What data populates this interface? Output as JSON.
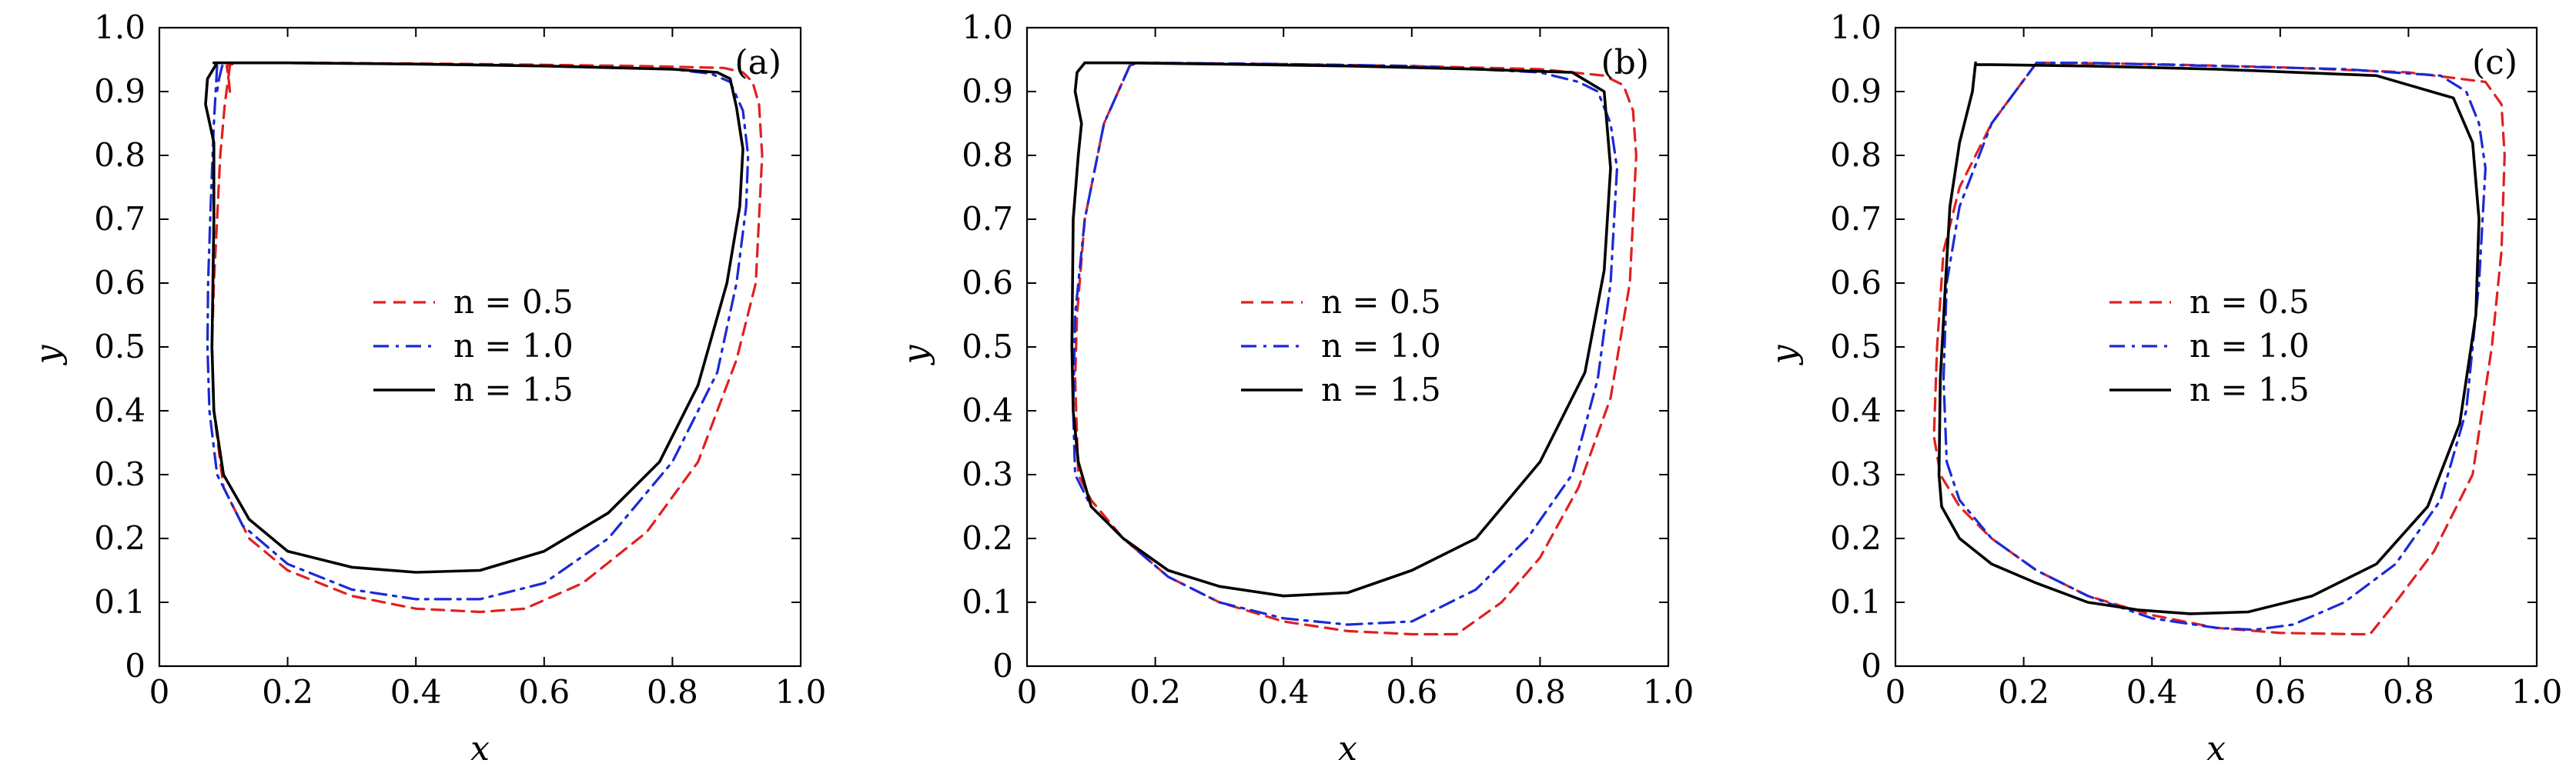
{
  "chart_data": [
    {
      "type": "line",
      "panel": "(a)",
      "xlabel": "x",
      "ylabel": "y",
      "xlim": [
        0,
        1.0
      ],
      "ylim": [
        0,
        1.0
      ],
      "xticks": [
        "0",
        "0.2",
        "0.4",
        "0.6",
        "0.8",
        "1.0"
      ],
      "yticks": [
        "0",
        "0.1",
        "0.2",
        "0.3",
        "0.4",
        "0.5",
        "0.6",
        "0.7",
        "0.8",
        "0.9",
        "1.0"
      ],
      "legend_position": "center",
      "series": [
        {
          "name": "n = 0.5",
          "color": "#e02020",
          "dash": "dashed",
          "x": [
            0.11,
            0.102,
            0.095,
            0.09,
            0.085,
            0.082,
            0.085,
            0.1,
            0.14,
            0.2,
            0.3,
            0.4,
            0.5,
            0.57,
            0.66,
            0.76,
            0.84,
            0.9,
            0.93,
            0.94,
            0.935,
            0.925,
            0.91,
            0.88,
            0.75,
            0.5,
            0.25,
            0.12,
            0.105,
            0.108,
            0.11
          ],
          "y": [
            0.94,
            0.88,
            0.8,
            0.7,
            0.6,
            0.5,
            0.4,
            0.28,
            0.2,
            0.15,
            0.11,
            0.09,
            0.085,
            0.09,
            0.13,
            0.21,
            0.32,
            0.48,
            0.6,
            0.8,
            0.88,
            0.915,
            0.93,
            0.937,
            0.94,
            0.943,
            0.945,
            0.945,
            0.94,
            0.92,
            0.9
          ]
        },
        {
          "name": "n = 1.0",
          "color": "#1a2ad6",
          "dash": "dashdot",
          "x": [
            0.09,
            0.085,
            0.08,
            0.076,
            0.075,
            0.078,
            0.09,
            0.13,
            0.2,
            0.3,
            0.4,
            0.5,
            0.6,
            0.7,
            0.8,
            0.87,
            0.9,
            0.915,
            0.918,
            0.91,
            0.89,
            0.86,
            0.8,
            0.6,
            0.4,
            0.2,
            0.105,
            0.098,
            0.093,
            0.09
          ],
          "y": [
            0.94,
            0.85,
            0.72,
            0.6,
            0.5,
            0.4,
            0.3,
            0.22,
            0.16,
            0.12,
            0.105,
            0.105,
            0.13,
            0.2,
            0.32,
            0.46,
            0.6,
            0.72,
            0.8,
            0.87,
            0.915,
            0.928,
            0.935,
            0.94,
            0.943,
            0.945,
            0.945,
            0.94,
            0.92,
            0.9
          ]
        },
        {
          "name": "n = 1.5",
          "color": "#000000",
          "dash": "solid",
          "x": [
            0.09,
            0.075,
            0.072,
            0.085,
            0.085,
            0.082,
            0.085,
            0.1,
            0.14,
            0.2,
            0.3,
            0.4,
            0.5,
            0.6,
            0.7,
            0.78,
            0.84,
            0.885,
            0.905,
            0.91,
            0.9,
            0.89,
            0.87,
            0.8,
            0.6,
            0.4,
            0.2,
            0.1,
            0.085,
            0.09
          ],
          "y": [
            0.945,
            0.92,
            0.88,
            0.82,
            0.7,
            0.5,
            0.4,
            0.3,
            0.23,
            0.18,
            0.155,
            0.147,
            0.15,
            0.18,
            0.24,
            0.32,
            0.44,
            0.6,
            0.72,
            0.81,
            0.875,
            0.92,
            0.93,
            0.935,
            0.94,
            0.943,
            0.945,
            0.945,
            0.945,
            0.945
          ]
        }
      ]
    },
    {
      "type": "line",
      "panel": "(b)",
      "xlabel": "x",
      "ylabel": "y",
      "xlim": [
        0,
        1.0
      ],
      "ylim": [
        0,
        1.0
      ],
      "xticks": [
        "0",
        "0.2",
        "0.4",
        "0.6",
        "0.8",
        "1.0"
      ],
      "yticks": [
        "0",
        "0.1",
        "0.2",
        "0.3",
        "0.4",
        "0.5",
        "0.6",
        "0.7",
        "0.8",
        "0.9",
        "1.0"
      ],
      "legend_position": "center",
      "series": [
        {
          "name": "n = 0.5",
          "color": "#e02020",
          "dash": "dashed",
          "x": [
            0.16,
            0.12,
            0.09,
            0.078,
            0.075,
            0.08,
            0.1,
            0.15,
            0.22,
            0.3,
            0.4,
            0.5,
            0.6,
            0.67,
            0.74,
            0.8,
            0.86,
            0.91,
            0.94,
            0.95,
            0.945,
            0.93,
            0.9,
            0.8,
            0.6,
            0.4,
            0.2,
            0.17,
            0.16
          ],
          "y": [
            0.94,
            0.85,
            0.7,
            0.55,
            0.45,
            0.3,
            0.26,
            0.2,
            0.14,
            0.1,
            0.07,
            0.055,
            0.05,
            0.05,
            0.1,
            0.17,
            0.28,
            0.42,
            0.6,
            0.8,
            0.87,
            0.91,
            0.925,
            0.935,
            0.94,
            0.943,
            0.945,
            0.945,
            0.94
          ]
        },
        {
          "name": "n = 1.0",
          "color": "#1a2ad6",
          "dash": "dashdot",
          "x": [
            0.16,
            0.12,
            0.09,
            0.075,
            0.072,
            0.075,
            0.1,
            0.15,
            0.22,
            0.3,
            0.4,
            0.5,
            0.6,
            0.7,
            0.78,
            0.85,
            0.89,
            0.91,
            0.92,
            0.91,
            0.89,
            0.86,
            0.8,
            0.6,
            0.4,
            0.2,
            0.17,
            0.16
          ],
          "y": [
            0.94,
            0.85,
            0.7,
            0.55,
            0.4,
            0.3,
            0.25,
            0.2,
            0.14,
            0.1,
            0.075,
            0.065,
            0.07,
            0.12,
            0.2,
            0.3,
            0.45,
            0.6,
            0.78,
            0.85,
            0.9,
            0.915,
            0.93,
            0.94,
            0.943,
            0.945,
            0.945,
            0.94
          ]
        },
        {
          "name": "n = 1.5",
          "color": "#000000",
          "dash": "solid",
          "x": [
            0.09,
            0.078,
            0.075,
            0.085,
            0.08,
            0.072,
            0.07,
            0.072,
            0.08,
            0.1,
            0.15,
            0.22,
            0.3,
            0.4,
            0.5,
            0.6,
            0.7,
            0.8,
            0.87,
            0.9,
            0.91,
            0.9,
            0.85,
            0.7,
            0.5,
            0.3,
            0.15,
            0.1,
            0.09
          ],
          "y": [
            0.945,
            0.93,
            0.9,
            0.85,
            0.8,
            0.7,
            0.5,
            0.4,
            0.32,
            0.25,
            0.2,
            0.15,
            0.125,
            0.11,
            0.115,
            0.15,
            0.2,
            0.32,
            0.46,
            0.62,
            0.78,
            0.9,
            0.93,
            0.935,
            0.94,
            0.943,
            0.945,
            0.945,
            0.945
          ]
        }
      ]
    },
    {
      "type": "line",
      "panel": "(c)",
      "xlabel": "x",
      "ylabel": "y",
      "xlim": [
        0,
        1.0
      ],
      "ylim": [
        0,
        1.0
      ],
      "xticks": [
        "0",
        "0.2",
        "0.4",
        "0.6",
        "0.8",
        "1.0"
      ],
      "yticks": [
        "0",
        "0.1",
        "0.2",
        "0.3",
        "0.4",
        "0.5",
        "0.6",
        "0.7",
        "0.8",
        "0.9",
        "1.0"
      ],
      "legend_position": "center",
      "series": [
        {
          "name": "n = 0.5",
          "color": "#e02020",
          "dash": "dashed",
          "x": [
            0.22,
            0.15,
            0.1,
            0.075,
            0.065,
            0.06,
            0.07,
            0.1,
            0.15,
            0.22,
            0.3,
            0.4,
            0.5,
            0.6,
            0.72,
            0.74,
            0.78,
            0.84,
            0.9,
            0.93,
            0.945,
            0.95,
            0.945,
            0.92,
            0.8,
            0.6,
            0.4,
            0.25,
            0.22
          ],
          "y": [
            0.945,
            0.85,
            0.75,
            0.65,
            0.5,
            0.36,
            0.3,
            0.25,
            0.2,
            0.15,
            0.11,
            0.08,
            0.06,
            0.052,
            0.05,
            0.05,
            0.1,
            0.18,
            0.3,
            0.5,
            0.65,
            0.8,
            0.88,
            0.915,
            0.93,
            0.938,
            0.943,
            0.945,
            0.945
          ]
        },
        {
          "name": "n = 1.0",
          "color": "#1a2ad6",
          "dash": "dashdot",
          "x": [
            0.22,
            0.15,
            0.1,
            0.08,
            0.075,
            0.08,
            0.1,
            0.15,
            0.22,
            0.3,
            0.4,
            0.5,
            0.56,
            0.62,
            0.7,
            0.78,
            0.85,
            0.89,
            0.91,
            0.92,
            0.91,
            0.89,
            0.85,
            0.7,
            0.5,
            0.3,
            0.22
          ],
          "y": [
            0.945,
            0.85,
            0.72,
            0.6,
            0.45,
            0.32,
            0.26,
            0.2,
            0.15,
            0.11,
            0.075,
            0.06,
            0.057,
            0.065,
            0.1,
            0.16,
            0.26,
            0.4,
            0.6,
            0.78,
            0.85,
            0.9,
            0.925,
            0.935,
            0.94,
            0.945,
            0.945
          ]
        },
        {
          "name": "n = 1.5",
          "color": "#000000",
          "dash": "solid",
          "x": [
            0.125,
            0.12,
            0.1,
            0.085,
            0.078,
            0.07,
            0.068,
            0.072,
            0.1,
            0.15,
            0.22,
            0.3,
            0.38,
            0.46,
            0.55,
            0.65,
            0.75,
            0.83,
            0.88,
            0.905,
            0.91,
            0.9,
            0.87,
            0.75,
            0.5,
            0.3,
            0.15,
            0.13,
            0.125
          ],
          "y": [
            0.945,
            0.9,
            0.82,
            0.72,
            0.6,
            0.45,
            0.3,
            0.25,
            0.2,
            0.16,
            0.13,
            0.1,
            0.088,
            0.082,
            0.085,
            0.11,
            0.16,
            0.25,
            0.38,
            0.55,
            0.7,
            0.82,
            0.89,
            0.925,
            0.935,
            0.94,
            0.942,
            0.942,
            0.942
          ]
        }
      ]
    }
  ]
}
